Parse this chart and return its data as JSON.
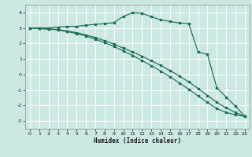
{
  "xlabel": "Humidex (Indice chaleur)",
  "bg_color": "#cce8e4",
  "grid_color": "#b0d8d0",
  "line_color": "#1a6b5a",
  "xlim": [
    -0.5,
    23.5
  ],
  "ylim": [
    -3.5,
    4.5
  ],
  "yticks": [
    -3,
    -2,
    -1,
    0,
    1,
    2,
    3,
    4
  ],
  "xticks": [
    0,
    1,
    2,
    3,
    4,
    5,
    6,
    7,
    8,
    9,
    10,
    11,
    12,
    13,
    14,
    15,
    16,
    17,
    18,
    19,
    20,
    21,
    22,
    23
  ],
  "line1_x": [
    0,
    1,
    2,
    3,
    4,
    5,
    6,
    7,
    8,
    9,
    10,
    11,
    12,
    13,
    14,
    15,
    16,
    17,
    18,
    19,
    20,
    21,
    22,
    23
  ],
  "line1_y": [
    3.0,
    2.97,
    2.94,
    2.91,
    2.8,
    2.7,
    2.55,
    2.38,
    2.18,
    1.95,
    1.7,
    1.45,
    1.18,
    0.88,
    0.58,
    0.25,
    -0.1,
    -0.48,
    -0.9,
    -1.35,
    -1.8,
    -2.15,
    -2.45,
    -2.7
  ],
  "line2_x": [
    0,
    1,
    2,
    3,
    4,
    5,
    6,
    7,
    8,
    9,
    10,
    11,
    12,
    13,
    14,
    15,
    16,
    17,
    18,
    19,
    20,
    21,
    22,
    23
  ],
  "line2_y": [
    3.0,
    2.96,
    2.92,
    2.88,
    2.76,
    2.64,
    2.48,
    2.28,
    2.05,
    1.8,
    1.52,
    1.22,
    0.9,
    0.57,
    0.22,
    -0.15,
    -0.55,
    -0.95,
    -1.38,
    -1.8,
    -2.2,
    -2.45,
    -2.6,
    -2.7
  ],
  "line3_x": [
    0,
    1,
    2,
    3,
    4,
    5,
    6,
    7,
    8,
    9,
    10,
    11,
    12,
    13,
    14,
    15,
    16,
    17,
    18,
    19,
    20,
    21,
    22,
    23
  ],
  "line3_y": [
    3.0,
    3.0,
    3.0,
    3.05,
    3.1,
    3.1,
    3.18,
    3.23,
    3.28,
    3.35,
    3.75,
    3.98,
    3.95,
    3.72,
    3.52,
    3.42,
    3.32,
    3.28,
    1.45,
    1.3,
    -0.85,
    -1.45,
    -2.05,
    -2.7
  ]
}
